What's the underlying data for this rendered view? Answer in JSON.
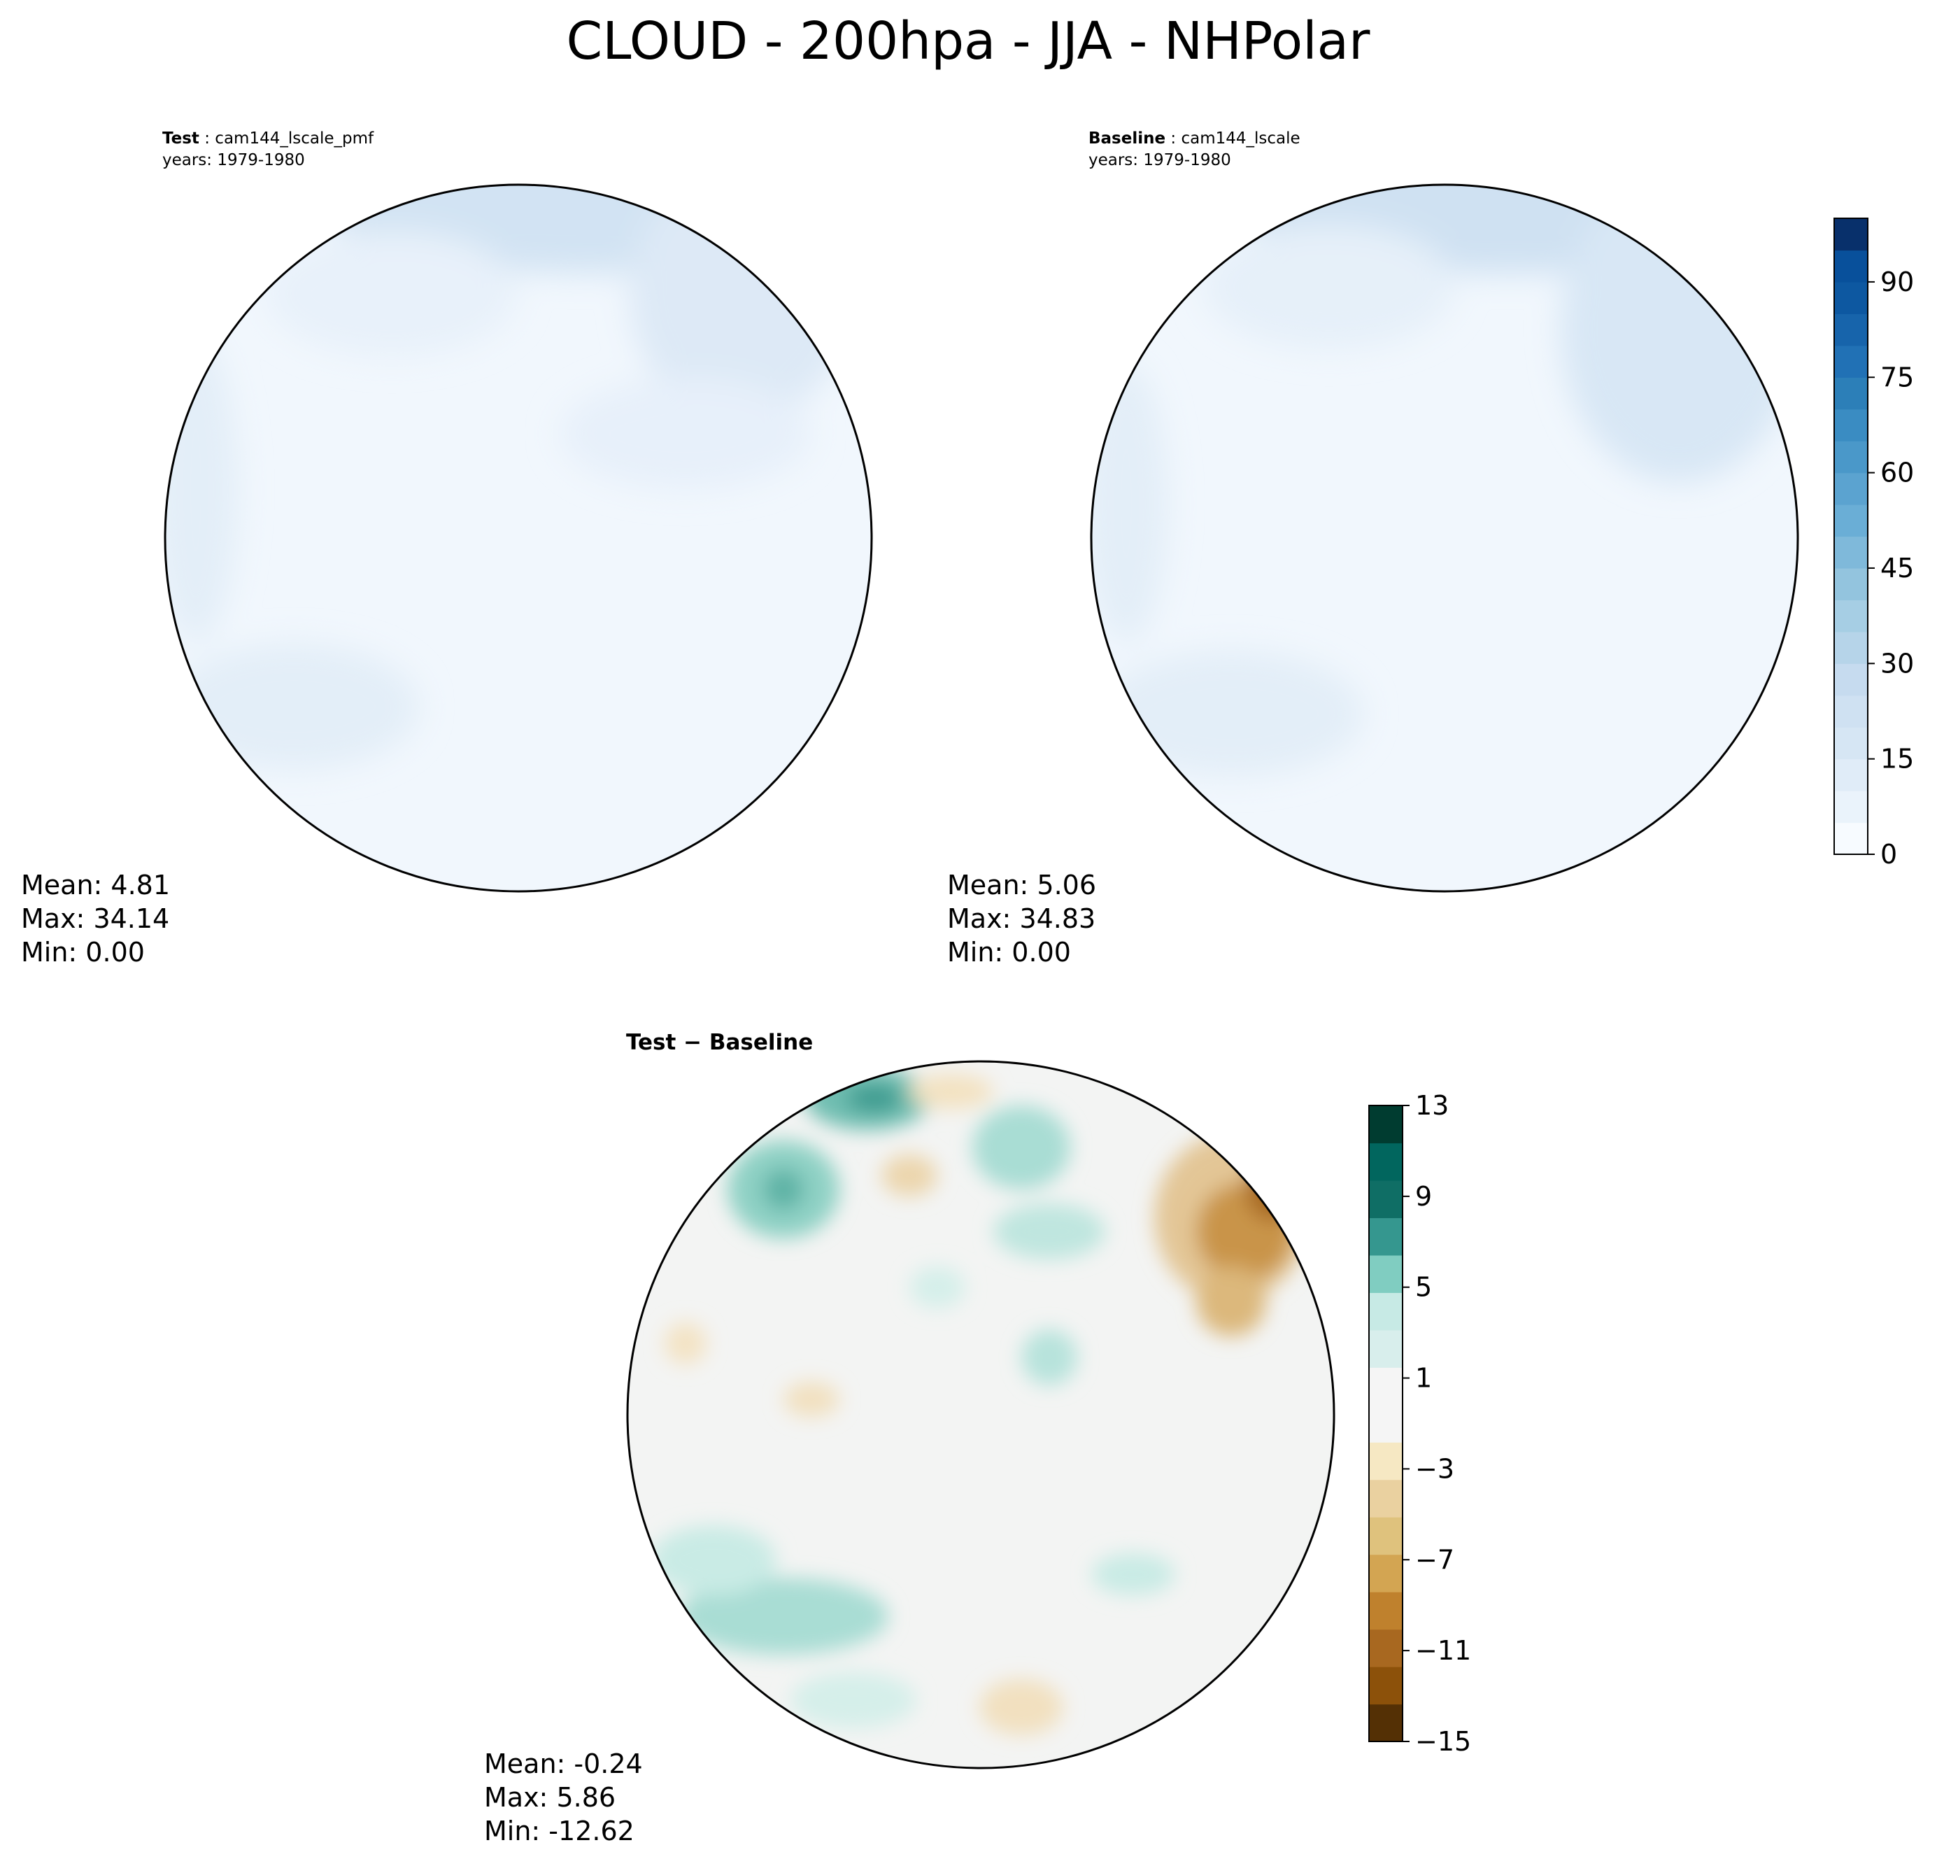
{
  "title": "CLOUD - 200hpa - JJA - NHPolar",
  "panels": {
    "test": {
      "label": "Test",
      "name": "cam144_lscale_pmf",
      "years": "years: 1979-1980",
      "mean_label": "Mean:  4.81",
      "max_label": "Max: 34.14",
      "min_label": "Min:  0.00"
    },
    "baseline": {
      "label": "Baseline",
      "name": "cam144_lscale",
      "years": "years: 1979-1980",
      "mean_label": "Mean:  5.06",
      "max_label": "Max: 34.83",
      "min_label": "Min:  0.00"
    },
    "diff": {
      "label": "Test − Baseline",
      "mean_label": "Mean: -0.24",
      "max_label": "Max:  5.86",
      "min_label": "Min: -12.62"
    }
  },
  "colorbar_main": {
    "min": 0,
    "max": 100,
    "step": 5,
    "ticks": [
      "0",
      "15",
      "30",
      "45",
      "60",
      "75",
      "90"
    ],
    "colors": [
      "#f7fbff",
      "#eaf3fb",
      "#e0ecf8",
      "#d6e6f4",
      "#cfe1f2",
      "#c6dbef",
      "#b6d4e9",
      "#a6cee4",
      "#93c4de",
      "#7fb9da",
      "#6aaed6",
      "#5ba3d0",
      "#4a98c9",
      "#3a8cc2",
      "#2c7fb8",
      "#2171b5",
      "#1764ab",
      "#0d58a1",
      "#08509b",
      "#08306b"
    ]
  },
  "colorbar_diff": {
    "min": -15,
    "max": 13,
    "step": 2,
    "ticks": [
      "13",
      "9",
      "5",
      "1",
      "−3",
      "−7",
      "−11",
      "−15"
    ],
    "colors": [
      "#543005",
      "#8c510a",
      "#a86820",
      "#bf812d",
      "#d3a552",
      "#dfc27d",
      "#ead1a0",
      "#f6e8c3",
      "#f5f5f5",
      "#f5f5f5",
      "#d8eeec",
      "#c7eae5",
      "#80cdc1",
      "#35978f",
      "#0f6e65",
      "#01665e",
      "#003c30"
    ]
  }
}
